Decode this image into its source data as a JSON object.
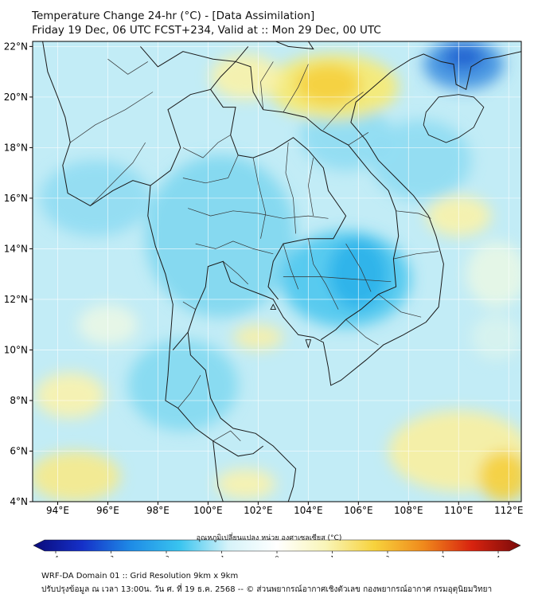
{
  "header": {
    "title": "Temperature Change 24-hr (°C) - [Data Assimilation]",
    "subtitle": "Friday 19 Dec, 06 UTC FCST+234, Valid at :: Mon 29 Dec, 00 UTC"
  },
  "map": {
    "lon_range": [
      93,
      112.5
    ],
    "lat_range": [
      4,
      22.2
    ],
    "lat_ticks": [
      {
        "value": 22,
        "label": "22°N"
      },
      {
        "value": 20,
        "label": "20°N"
      },
      {
        "value": 18,
        "label": "18°N"
      },
      {
        "value": 16,
        "label": "16°N"
      },
      {
        "value": 14,
        "label": "14°N"
      },
      {
        "value": 12,
        "label": "12°N"
      },
      {
        "value": 10,
        "label": "10°N"
      },
      {
        "value": 8,
        "label": "8°N"
      },
      {
        "value": 6,
        "label": "6°N"
      },
      {
        "value": 4,
        "label": "4°N"
      }
    ],
    "lon_ticks": [
      {
        "value": 94,
        "label": "94°E"
      },
      {
        "value": 96,
        "label": "96°E"
      },
      {
        "value": 98,
        "label": "98°E"
      },
      {
        "value": 100,
        "label": "100°E"
      },
      {
        "value": 102,
        "label": "102°E"
      },
      {
        "value": 104,
        "label": "104°E"
      },
      {
        "value": 106,
        "label": "106°E"
      },
      {
        "value": 108,
        "label": "108°E"
      },
      {
        "value": 110,
        "label": "110°E"
      },
      {
        "value": 112,
        "label": "112°E"
      }
    ],
    "colors": {
      "background": "#c2ecf6",
      "grid": "#ffffff",
      "coast": "#1a1a1a",
      "border": "#333333"
    },
    "anomalies": [
      {
        "lon": 100.5,
        "lat": 14.5,
        "rx": 3.0,
        "ry": 3.2,
        "color": "#7fd7f0"
      },
      {
        "lon": 105.5,
        "lat": 12.8,
        "rx": 2.6,
        "ry": 1.9,
        "color": "#4dc6ee"
      },
      {
        "lon": 106.0,
        "lat": 13.0,
        "rx": 1.2,
        "ry": 1.4,
        "color": "#2bb1ea"
      },
      {
        "lon": 99.0,
        "lat": 8.6,
        "rx": 2.2,
        "ry": 1.8,
        "color": "#83d9f1"
      },
      {
        "lon": 95.5,
        "lat": 16.0,
        "rx": 2.2,
        "ry": 1.5,
        "color": "#90dcf2"
      },
      {
        "lon": 105.5,
        "lat": 18.5,
        "rx": 1.8,
        "ry": 1.4,
        "color": "#8fdbf2"
      },
      {
        "lon": 108.5,
        "lat": 17.5,
        "rx": 2.0,
        "ry": 1.6,
        "color": "#8fdbf2"
      },
      {
        "lon": 110.2,
        "lat": 21.3,
        "rx": 1.6,
        "ry": 1.0,
        "color": "#3d8fe0"
      },
      {
        "lon": 110.2,
        "lat": 21.6,
        "rx": 0.8,
        "ry": 0.5,
        "color": "#2060d0"
      },
      {
        "lon": 105.0,
        "lat": 20.4,
        "rx": 2.6,
        "ry": 1.3,
        "color": "#f8ea70"
      },
      {
        "lon": 104.8,
        "lat": 20.5,
        "rx": 1.3,
        "ry": 0.8,
        "color": "#f5cf3c"
      },
      {
        "lon": 101.5,
        "lat": 20.8,
        "rx": 1.4,
        "ry": 0.9,
        "color": "#f9f2a8"
      },
      {
        "lon": 110.0,
        "lat": 15.3,
        "rx": 1.3,
        "ry": 0.8,
        "color": "#f9f2a8"
      },
      {
        "lon": 111.5,
        "lat": 13.0,
        "rx": 1.2,
        "ry": 1.3,
        "color": "#e8f7e6"
      },
      {
        "lon": 102.0,
        "lat": 10.5,
        "rx": 1.0,
        "ry": 0.5,
        "color": "#f7f0a8"
      },
      {
        "lon": 96.0,
        "lat": 11.0,
        "rx": 1.2,
        "ry": 0.8,
        "color": "#eaf7e6"
      },
      {
        "lon": 94.5,
        "lat": 8.2,
        "rx": 1.4,
        "ry": 0.9,
        "color": "#fbf2ac"
      },
      {
        "lon": 94.7,
        "lat": 5.0,
        "rx": 1.8,
        "ry": 1.0,
        "color": "#f7ea8a"
      },
      {
        "lon": 110.0,
        "lat": 6.0,
        "rx": 2.8,
        "ry": 1.6,
        "color": "#f9f0a0"
      },
      {
        "lon": 111.8,
        "lat": 5.0,
        "rx": 1.0,
        "ry": 1.0,
        "color": "#f5cf3c"
      },
      {
        "lon": 101.5,
        "lat": 4.7,
        "rx": 1.2,
        "ry": 0.6,
        "color": "#fbf2ac"
      },
      {
        "lon": 111.5,
        "lat": 10.5,
        "rx": 1.0,
        "ry": 0.9,
        "color": "#d8f3ee"
      }
    ],
    "coastline": [
      [
        [
          93.4,
          22.2
        ],
        [
          93.6,
          21.0
        ],
        [
          94.0,
          20.0
        ],
        [
          94.3,
          19.2
        ],
        [
          94.5,
          18.2
        ],
        [
          94.2,
          17.3
        ],
        [
          94.4,
          16.2
        ],
        [
          95.3,
          15.7
        ],
        [
          96.2,
          16.3
        ],
        [
          97.0,
          16.7
        ],
        [
          97.7,
          16.5
        ],
        [
          97.6,
          15.3
        ],
        [
          97.9,
          14.1
        ],
        [
          98.3,
          13.0
        ],
        [
          98.6,
          11.8
        ],
        [
          98.5,
          10.5
        ],
        [
          98.4,
          9.0
        ],
        [
          98.3,
          8.0
        ],
        [
          98.8,
          7.7
        ],
        [
          99.5,
          6.9
        ],
        [
          100.2,
          6.4
        ],
        [
          100.3,
          5.5
        ],
        [
          100.4,
          4.6
        ],
        [
          100.6,
          4.0
        ]
      ],
      [
        [
          103.2,
          4.0
        ],
        [
          103.4,
          4.6
        ],
        [
          103.5,
          5.3
        ],
        [
          102.6,
          6.2
        ],
        [
          101.9,
          6.7
        ],
        [
          101.0,
          6.9
        ],
        [
          100.5,
          7.3
        ],
        [
          100.1,
          8.1
        ],
        [
          99.9,
          9.2
        ],
        [
          99.3,
          9.8
        ],
        [
          99.2,
          10.7
        ],
        [
          99.5,
          11.6
        ],
        [
          99.9,
          12.5
        ],
        [
          100.0,
          13.3
        ],
        [
          100.6,
          13.5
        ],
        [
          100.9,
          12.7
        ],
        [
          101.3,
          12.5
        ],
        [
          102.1,
          12.2
        ],
        [
          102.6,
          12.0
        ],
        [
          103.0,
          11.3
        ],
        [
          103.6,
          10.6
        ],
        [
          104.2,
          10.5
        ],
        [
          104.6,
          10.3
        ],
        [
          104.8,
          9.3
        ],
        [
          104.9,
          8.6
        ],
        [
          105.3,
          8.8
        ],
        [
          106.3,
          9.6
        ],
        [
          107.0,
          10.2
        ],
        [
          107.8,
          10.6
        ],
        [
          108.7,
          11.1
        ],
        [
          109.2,
          11.7
        ],
        [
          109.3,
          12.5
        ],
        [
          109.4,
          13.4
        ],
        [
          109.1,
          14.5
        ],
        [
          108.8,
          15.3
        ],
        [
          108.2,
          16.1
        ],
        [
          107.5,
          16.8
        ],
        [
          106.8,
          17.5
        ],
        [
          106.3,
          18.3
        ],
        [
          105.7,
          19.0
        ],
        [
          105.9,
          19.8
        ],
        [
          106.6,
          20.4
        ],
        [
          107.3,
          21.0
        ],
        [
          108.1,
          21.5
        ],
        [
          108.6,
          21.7
        ],
        [
          109.3,
          21.4
        ],
        [
          109.8,
          21.3
        ],
        [
          109.9,
          20.5
        ],
        [
          110.3,
          20.3
        ],
        [
          110.5,
          21.2
        ],
        [
          111.0,
          21.5
        ],
        [
          111.6,
          21.6
        ],
        [
          112.5,
          21.8
        ]
      ]
    ],
    "islands": [
      [
        [
          108.7,
          19.4
        ],
        [
          109.2,
          20.0
        ],
        [
          110.0,
          20.1
        ],
        [
          110.6,
          20.0
        ],
        [
          111.0,
          19.6
        ],
        [
          110.6,
          18.8
        ],
        [
          110.0,
          18.4
        ],
        [
          109.5,
          18.2
        ],
        [
          108.8,
          18.5
        ],
        [
          108.6,
          18.9
        ],
        [
          108.7,
          19.4
        ]
      ],
      [
        [
          103.9,
          10.4
        ],
        [
          104.0,
          10.1
        ],
        [
          104.1,
          10.4
        ],
        [
          103.9,
          10.4
        ]
      ],
      [
        [
          102.5,
          11.6
        ],
        [
          102.6,
          11.8
        ],
        [
          102.7,
          11.6
        ],
        [
          102.5,
          11.6
        ]
      ]
    ],
    "borders": [
      [
        [
          97.3,
          22.0
        ],
        [
          98.0,
          21.2
        ],
        [
          99.0,
          21.8
        ],
        [
          100.2,
          21.5
        ],
        [
          101.1,
          21.4
        ],
        [
          101.6,
          22.0
        ]
      ],
      [
        [
          100.1,
          20.3
        ],
        [
          100.6,
          19.6
        ],
        [
          101.1,
          19.6
        ],
        [
          100.9,
          18.5
        ],
        [
          101.2,
          17.7
        ],
        [
          101.8,
          17.6
        ],
        [
          102.6,
          17.9
        ],
        [
          103.4,
          18.4
        ],
        [
          104.0,
          17.9
        ],
        [
          104.6,
          17.2
        ],
        [
          104.8,
          16.3
        ],
        [
          105.5,
          15.3
        ],
        [
          105.0,
          14.4
        ],
        [
          104.0,
          14.4
        ],
        [
          103.0,
          14.2
        ],
        [
          102.6,
          13.5
        ],
        [
          102.4,
          12.5
        ],
        [
          102.8,
          12.0
        ]
      ],
      [
        [
          97.7,
          16.5
        ],
        [
          98.5,
          17.1
        ],
        [
          98.9,
          18.0
        ],
        [
          98.4,
          19.5
        ],
        [
          99.3,
          20.1
        ],
        [
          100.1,
          20.3
        ],
        [
          100.5,
          20.8
        ],
        [
          101.1,
          21.4
        ],
        [
          101.7,
          21.2
        ],
        [
          101.8,
          20.2
        ],
        [
          102.2,
          19.5
        ],
        [
          103.0,
          19.4
        ],
        [
          103.9,
          19.2
        ],
        [
          104.5,
          18.7
        ],
        [
          105.6,
          18.1
        ],
        [
          106.5,
          17.0
        ],
        [
          107.2,
          16.3
        ],
        [
          107.5,
          15.5
        ],
        [
          107.6,
          14.5
        ],
        [
          107.4,
          13.6
        ],
        [
          107.5,
          12.5
        ],
        [
          106.8,
          12.2
        ],
        [
          106.1,
          11.6
        ],
        [
          105.5,
          11.2
        ],
        [
          105.1,
          10.8
        ],
        [
          104.5,
          10.4
        ]
      ],
      [
        [
          104.0,
          22.2
        ],
        [
          104.2,
          21.9
        ],
        [
          103.2,
          22.0
        ],
        [
          102.2,
          22.4
        ]
      ],
      [
        [
          100.2,
          6.4
        ],
        [
          101.2,
          5.8
        ],
        [
          101.8,
          5.9
        ],
        [
          102.2,
          6.2
        ]
      ],
      [
        [
          98.6,
          10.0
        ],
        [
          99.2,
          10.7
        ]
      ]
    ],
    "provinces": [
      [
        [
          99.0,
          18.0
        ],
        [
          99.8,
          17.6
        ],
        [
          100.4,
          18.2
        ],
        [
          100.9,
          18.5
        ]
      ],
      [
        [
          99.0,
          16.8
        ],
        [
          99.9,
          16.6
        ],
        [
          100.8,
          16.8
        ],
        [
          101.2,
          17.7
        ]
      ],
      [
        [
          99.2,
          15.6
        ],
        [
          100.1,
          15.3
        ],
        [
          101.0,
          15.5
        ],
        [
          102.0,
          15.4
        ],
        [
          103.0,
          15.2
        ],
        [
          104.0,
          15.3
        ],
        [
          104.8,
          15.2
        ]
      ],
      [
        [
          101.8,
          17.6
        ],
        [
          102.0,
          16.6
        ],
        [
          102.3,
          15.4
        ],
        [
          102.1,
          14.4
        ]
      ],
      [
        [
          103.2,
          18.2
        ],
        [
          103.1,
          17.0
        ],
        [
          103.4,
          16.0
        ],
        [
          103.5,
          14.6
        ]
      ],
      [
        [
          104.2,
          17.6
        ],
        [
          104.0,
          16.5
        ],
        [
          104.2,
          15.3
        ]
      ],
      [
        [
          99.5,
          14.2
        ],
        [
          100.3,
          14.0
        ],
        [
          101.0,
          14.3
        ],
        [
          101.8,
          14.0
        ],
        [
          102.6,
          13.8
        ]
      ],
      [
        [
          100.6,
          13.5
        ],
        [
          101.2,
          13.0
        ],
        [
          101.6,
          12.6
        ]
      ],
      [
        [
          104.6,
          18.7
        ],
        [
          105.5,
          19.7
        ],
        [
          106.2,
          20.2
        ]
      ],
      [
        [
          105.6,
          18.1
        ],
        [
          106.4,
          18.6
        ]
      ],
      [
        [
          102.2,
          19.5
        ],
        [
          102.1,
          20.6
        ],
        [
          102.6,
          21.4
        ]
      ],
      [
        [
          103.0,
          19.4
        ],
        [
          103.6,
          20.4
        ],
        [
          104.0,
          21.3
        ]
      ],
      [
        [
          104.0,
          14.4
        ],
        [
          104.2,
          13.4
        ],
        [
          104.7,
          12.6
        ],
        [
          105.2,
          11.6
        ]
      ],
      [
        [
          103.0,
          14.2
        ],
        [
          103.3,
          13.2
        ],
        [
          103.6,
          12.4
        ]
      ],
      [
        [
          105.5,
          14.2
        ],
        [
          106.1,
          13.2
        ],
        [
          106.5,
          12.3
        ]
      ],
      [
        [
          103.0,
          12.9
        ],
        [
          104.4,
          12.9
        ],
        [
          105.8,
          12.8
        ],
        [
          107.3,
          12.7
        ]
      ],
      [
        [
          107.4,
          13.6
        ],
        [
          108.3,
          13.8
        ],
        [
          109.2,
          13.9
        ]
      ],
      [
        [
          107.5,
          15.5
        ],
        [
          108.4,
          15.4
        ],
        [
          108.9,
          15.2
        ]
      ],
      [
        [
          106.8,
          12.2
        ],
        [
          107.7,
          11.5
        ],
        [
          108.5,
          11.3
        ]
      ],
      [
        [
          105.5,
          11.2
        ],
        [
          106.3,
          10.5
        ],
        [
          106.8,
          10.2
        ]
      ],
      [
        [
          98.8,
          7.7
        ],
        [
          99.3,
          8.3
        ],
        [
          99.7,
          9.0
        ]
      ],
      [
        [
          100.2,
          6.4
        ],
        [
          100.9,
          6.8
        ],
        [
          101.3,
          6.4
        ]
      ],
      [
        [
          99.5,
          11.6
        ],
        [
          99.0,
          11.9
        ]
      ],
      [
        [
          95.3,
          15.7
        ],
        [
          96.2,
          16.6
        ],
        [
          97.0,
          17.4
        ],
        [
          97.5,
          18.2
        ]
      ],
      [
        [
          94.5,
          18.2
        ],
        [
          95.5,
          18.9
        ],
        [
          96.7,
          19.5
        ],
        [
          97.8,
          20.2
        ]
      ],
      [
        [
          96.0,
          21.5
        ],
        [
          96.8,
          20.9
        ],
        [
          97.6,
          21.4
        ]
      ]
    ]
  },
  "colorbar": {
    "title": "อุณหภูมิเปลี่ยนแปลง หน่วย องศาเซลเซียส (°C)",
    "min": -4,
    "max": 4,
    "tick_labels": [
      "-4",
      "-3",
      "-2",
      "-1",
      "0",
      "1",
      "2",
      "3",
      "4"
    ],
    "color_stops": [
      "#0a0a7a",
      "#1530c8",
      "#1e8be6",
      "#39c4ef",
      "#d6f3f9",
      "#ffffff",
      "#f9f5b8",
      "#f7d23c",
      "#f08a1c",
      "#d8230f",
      "#7a0a0a"
    ]
  },
  "footer": {
    "line1": "WRF-DA Domain 01 :: Grid Resolution 9km x 9km",
    "line2": "ปรับปรุงข้อมูล ณ เวลา 13:00น. วัน ศ. ที่ 19 ธ.ค. 2568 -- © ส่วนพยากรณ์อากาศเชิงตัวเลข กองพยากรณ์อากาศ กรมอุตุนิยมวิทยา"
  }
}
